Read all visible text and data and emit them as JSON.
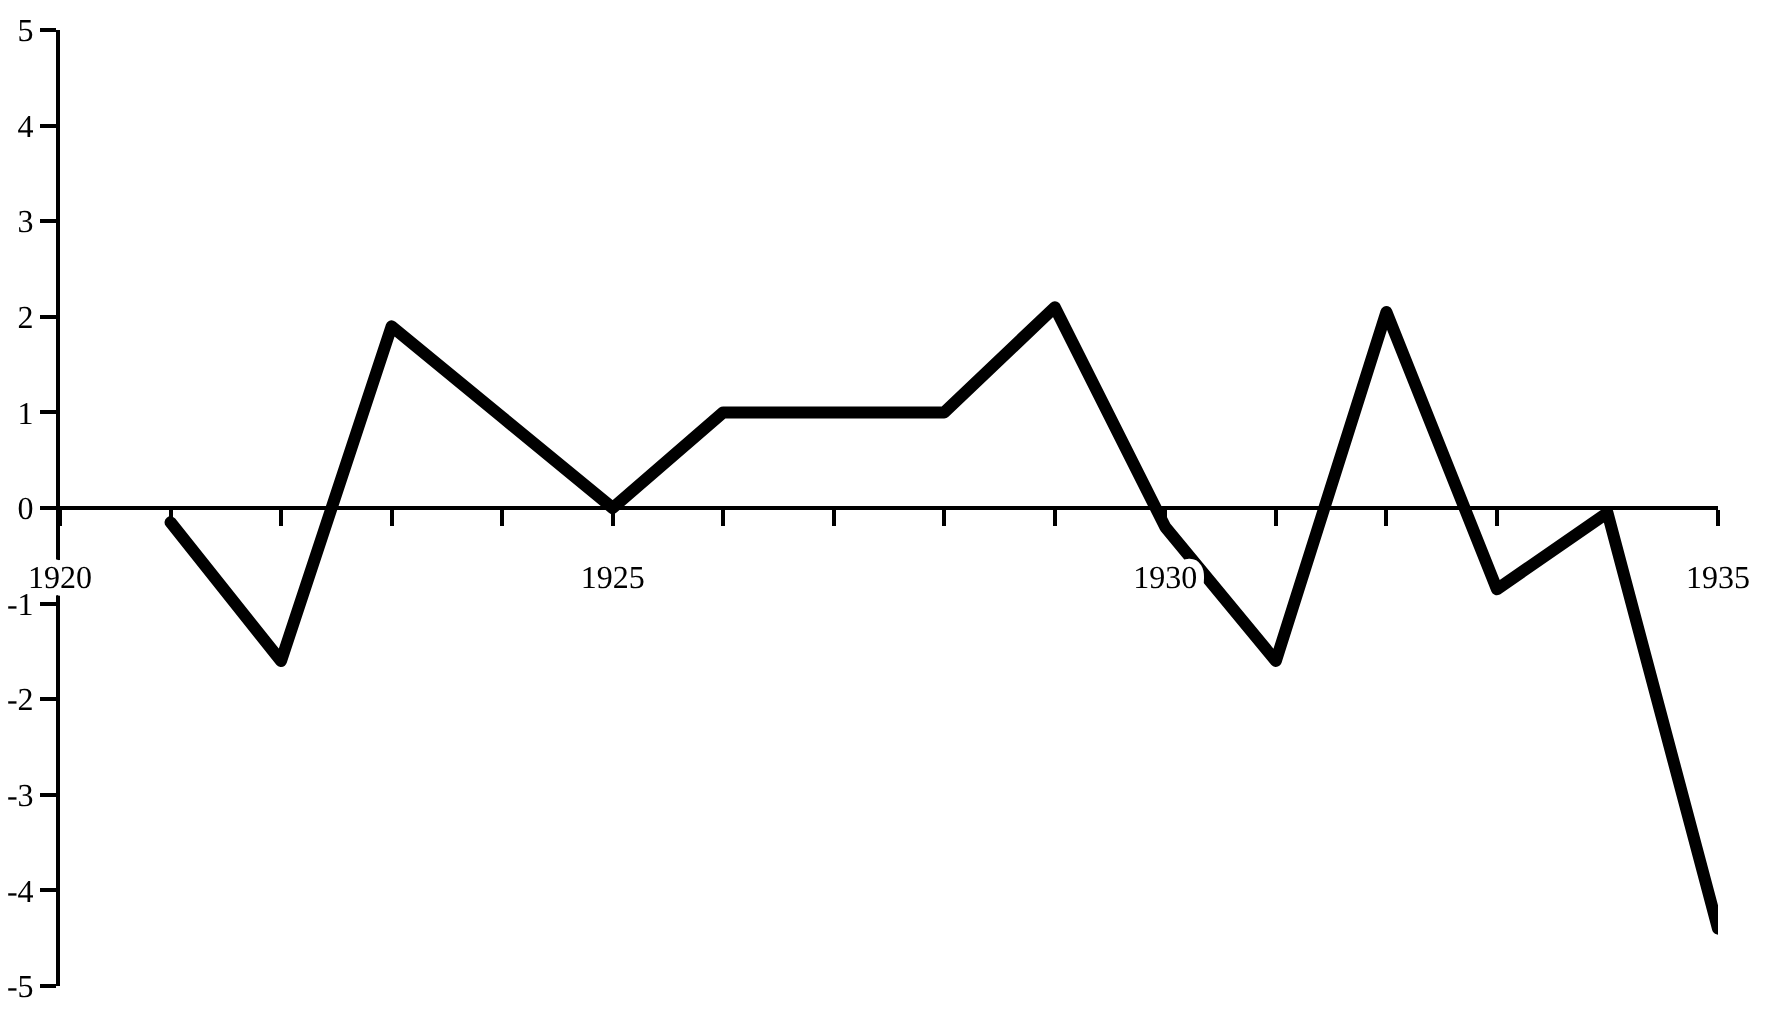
{
  "chart_data": {
    "type": "line",
    "x": [
      1921,
      1922,
      1923,
      1924,
      1925,
      1926,
      1927,
      1928,
      1929,
      1930,
      1931,
      1932,
      1933,
      1934,
      1935
    ],
    "series": [
      {
        "color": "#000000",
        "values": [
          -0.15,
          -1.6,
          1.9,
          0.95,
          0,
          1,
          1,
          1,
          2.1,
          -0.2,
          -1.6,
          2.05,
          -0.85,
          -0.05,
          -4.4
        ]
      }
    ],
    "xlim": [
      1920,
      1935
    ],
    "xticks": [
      1920,
      {
        "value": 1921,
        "label": null
      },
      {
        "value": 1922,
        "label": null
      },
      {
        "value": 1923,
        "label": null
      },
      {
        "value": 1924,
        "label": null
      },
      1925,
      {
        "value": 1926,
        "label": null
      },
      {
        "value": 1927,
        "label": null
      },
      {
        "value": 1928,
        "label": null
      },
      {
        "value": 1929,
        "label": null
      },
      1930,
      {
        "value": 1931,
        "label": null
      },
      {
        "value": 1932,
        "label": null
      },
      {
        "value": 1933,
        "label": null
      },
      {
        "value": 1934,
        "label": null
      },
      1935
    ],
    "ylim": [
      -5,
      5
    ],
    "yticks": [
      -5,
      -4,
      -3,
      -2,
      -1,
      0,
      1,
      2,
      3,
      4,
      5
    ],
    "grid": false,
    "marker": "none",
    "line_style": "solid"
  }
}
